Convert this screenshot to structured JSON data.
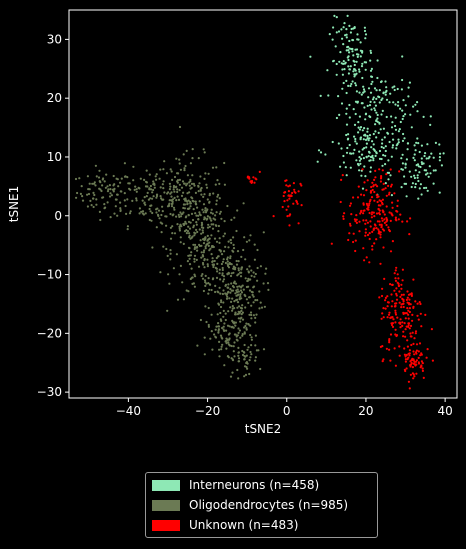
{
  "chart_data": {
    "type": "scatter",
    "title": "",
    "xlabel": "tSNE2",
    "ylabel": "tSNE1",
    "xlim": [
      -55,
      43
    ],
    "ylim": [
      -31,
      35
    ],
    "xticks": [
      -40,
      -20,
      0,
      20,
      40
    ],
    "yticks": [
      -30,
      -20,
      -10,
      0,
      10,
      20,
      30
    ],
    "xtick_labels": [
      "−40",
      "−20",
      "0",
      "20",
      "40"
    ],
    "ytick_labels": [
      "−30",
      "−20",
      "−10",
      "0",
      "10",
      "20",
      "30"
    ],
    "grid": false,
    "legend_position": "below",
    "series": [
      {
        "name": "Interneurons (n=458)",
        "color": "#8ee8b5",
        "n": 458,
        "regions": [
          {
            "cx": 16.5,
            "cy": 26.5,
            "sx": 2.8,
            "sy": 3.5,
            "w": 0.28
          },
          {
            "cx": 24.0,
            "cy": 18.0,
            "sx": 4.5,
            "sy": 3.5,
            "w": 0.26
          },
          {
            "cx": 21.0,
            "cy": 11.0,
            "sx": 5.0,
            "sy": 3.0,
            "w": 0.28
          },
          {
            "cx": 33.0,
            "cy": 8.5,
            "sx": 3.0,
            "sy": 2.5,
            "w": 0.18
          }
        ]
      },
      {
        "name": "Oligodendrocytes (n=985)",
        "color": "#6b7a54",
        "n": 985,
        "regions": [
          {
            "cx": -46.0,
            "cy": 4.0,
            "sx": 3.5,
            "sy": 1.8,
            "w": 0.08
          },
          {
            "cx": -35.0,
            "cy": 3.5,
            "sx": 5.0,
            "sy": 2.5,
            "w": 0.12
          },
          {
            "cx": -25.0,
            "cy": 2.0,
            "sx": 4.5,
            "sy": 4.0,
            "w": 0.22
          },
          {
            "cx": -20.0,
            "cy": -6.0,
            "sx": 4.5,
            "sy": 4.0,
            "w": 0.22
          },
          {
            "cx": -13.0,
            "cy": -13.0,
            "sx": 3.5,
            "sy": 4.0,
            "w": 0.24
          },
          {
            "cx": -14.0,
            "cy": -21.0,
            "sx": 3.0,
            "sy": 2.0,
            "w": 0.08
          },
          {
            "cx": -11.0,
            "cy": -24.5,
            "sx": 2.0,
            "sy": 1.5,
            "w": 0.04
          }
        ]
      },
      {
        "name": "Unknown (n=483)",
        "color": "#ff0000",
        "n": 483,
        "regions": [
          {
            "cx": -8.5,
            "cy": 6.5,
            "sx": 0.8,
            "sy": 0.8,
            "w": 0.03
          },
          {
            "cx": 0.5,
            "cy": 3.0,
            "sx": 1.5,
            "sy": 2.0,
            "w": 0.08
          },
          {
            "cx": 22.0,
            "cy": 0.5,
            "sx": 3.2,
            "sy": 3.5,
            "w": 0.4
          },
          {
            "cx": 29.0,
            "cy": -16.0,
            "sx": 2.8,
            "sy": 4.0,
            "w": 0.35
          },
          {
            "cx": 32.0,
            "cy": -24.5,
            "sx": 1.5,
            "sy": 1.8,
            "w": 0.14
          }
        ]
      }
    ]
  }
}
